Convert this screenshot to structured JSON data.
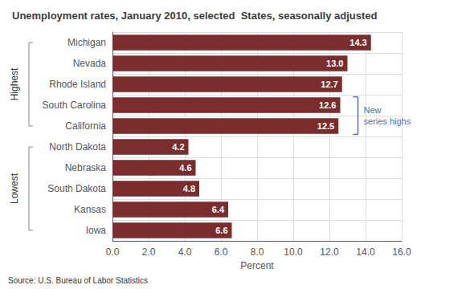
{
  "chart_data": {
    "type": "bar",
    "orientation": "horizontal",
    "title": "Unemployment rates, January 2010, selected  States, seasonally adjusted",
    "categories": [
      "Iowa",
      "Kansas",
      "South Dakota",
      "Nebraska",
      "North Dakota",
      "California",
      "South Carolina",
      "Rhode Island",
      "Nevada",
      "Michigan"
    ],
    "values": [
      6.6,
      6.4,
      4.8,
      4.6,
      4.2,
      12.5,
      12.6,
      12.7,
      13.0,
      14.3
    ],
    "value_labels": [
      "6.6",
      "6.4",
      "4.8",
      "4.6",
      "4.2",
      "12.5",
      "12.6",
      "12.7",
      "13.0",
      "14.3"
    ],
    "data_labels": true,
    "color": "#7B2D2D",
    "xlabel": "Percent",
    "xlim": [
      0,
      16.0
    ],
    "xticks": [
      {
        "value": 0.0,
        "label": "0.0"
      },
      {
        "value": 2.0,
        "label": "2.0"
      },
      {
        "value": 4.0,
        "label": "4.0"
      },
      {
        "value": 6.0,
        "label": "6.0"
      },
      {
        "value": 8.0,
        "label": "8.0"
      },
      {
        "value": 10.0,
        "label": "10.0"
      },
      {
        "value": 12.0,
        "label": "12.0"
      },
      {
        "value": 14.0,
        "label": "14.0"
      },
      {
        "value": 16.0,
        "label": "16.0"
      }
    ],
    "grid": true,
    "groups": [
      {
        "label": "Highest",
        "categories": [
          "California",
          "South Carolina",
          "Rhode Island",
          "Nevada",
          "Michigan"
        ]
      },
      {
        "label": "Lowest",
        "categories": [
          "Iowa",
          "Kansas",
          "South Dakota",
          "Nebraska",
          "North Dakota"
        ]
      }
    ],
    "annotations": [
      {
        "text": [
          "New",
          "series highs"
        ],
        "categories": [
          "California",
          "South Carolina"
        ],
        "color": "#4472C4"
      }
    ],
    "source": "Source: U.S. Bureau of Labor Statistics"
  }
}
